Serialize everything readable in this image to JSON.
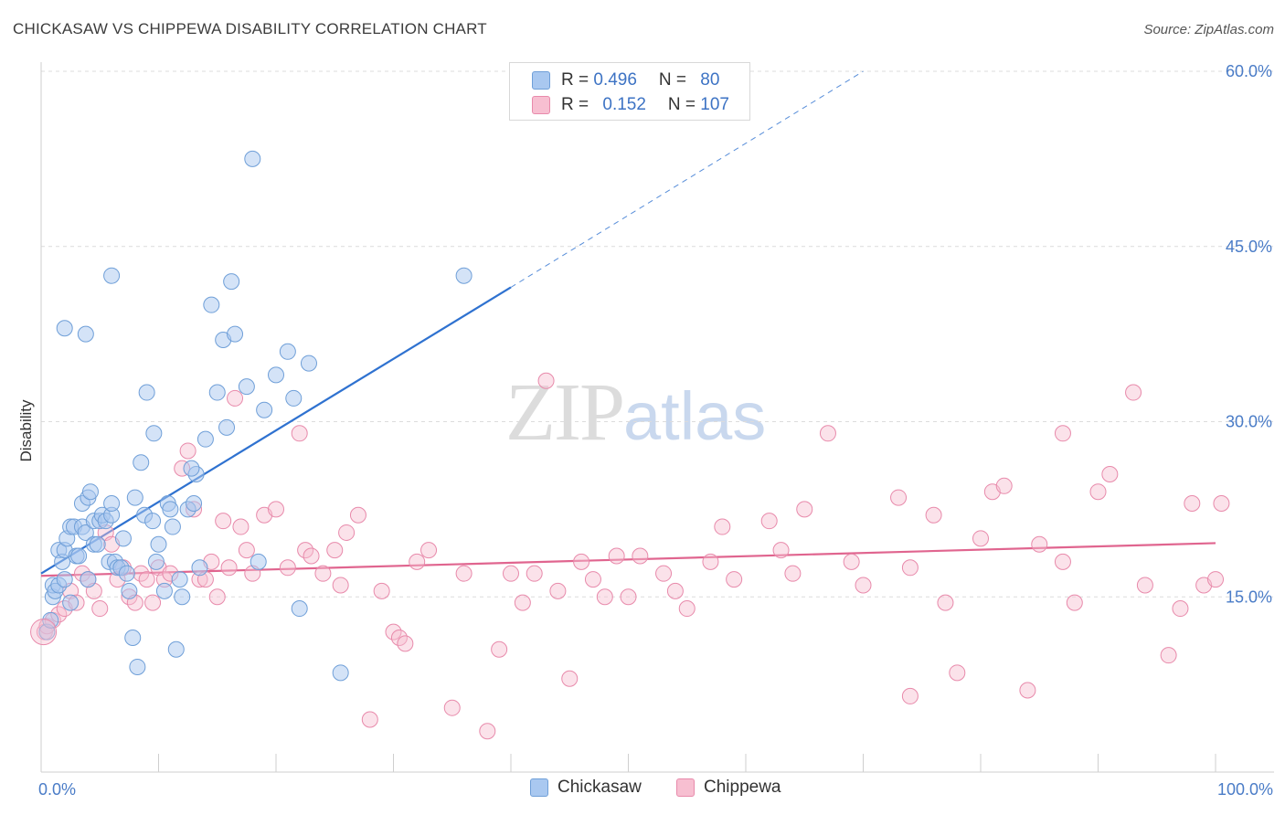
{
  "title": "CHICKASAW VS CHIPPEWA DISABILITY CORRELATION CHART",
  "source": "Source: ZipAtlas.com",
  "watermark": {
    "zip": "ZIP",
    "atlas": "atlas"
  },
  "legend": {
    "rows": [
      {
        "r_label": "R = ",
        "r_value": "0.496",
        "n_label": "N = ",
        "n_value": "80"
      },
      {
        "r_label": "R = ",
        "r_value": "0.152",
        "n_label": "N = ",
        "n_value": "107"
      }
    ]
  },
  "bottom_legend": [
    "Chickasaw",
    "Chippewa"
  ],
  "colors": {
    "chickasaw_fill": "#a9c8f0",
    "chickasaw_stroke": "#6f9fd8",
    "chickasaw_line": "#2f72d0",
    "chippewa_fill": "#f7bfd1",
    "chippewa_stroke": "#e88aab",
    "chippewa_line": "#e0658f",
    "axis_label": "#4a7cc7",
    "grid": "#dcdcdc"
  },
  "chart_data": {
    "type": "scatter",
    "xlabel": "",
    "ylabel": "Disability",
    "xlim": [
      0,
      100
    ],
    "ylim": [
      0,
      60
    ],
    "x_tick_labels": [
      "0.0%",
      "100.0%"
    ],
    "y_ticks": [
      15,
      30,
      45,
      60
    ],
    "y_tick_labels": [
      "15.0%",
      "30.0%",
      "45.0%",
      "60.0%"
    ],
    "grid": true,
    "legend_position": "top-center",
    "series": [
      {
        "name": "Chickasaw",
        "r": 0.496,
        "n": 80,
        "trend": {
          "x0": 0,
          "y0": 17.0,
          "x1": 40,
          "y1": 41.5,
          "dash_x1": 70,
          "dash_y1": 60
        },
        "points": [
          [
            0.5,
            12
          ],
          [
            0.8,
            13
          ],
          [
            1,
            15
          ],
          [
            1,
            16
          ],
          [
            1.2,
            15.5
          ],
          [
            1.5,
            16
          ],
          [
            1.5,
            19
          ],
          [
            1.8,
            18
          ],
          [
            2,
            16.5
          ],
          [
            2,
            19
          ],
          [
            2.2,
            20
          ],
          [
            2.5,
            21
          ],
          [
            2.5,
            14.5
          ],
          [
            2.8,
            21
          ],
          [
            3,
            18.5
          ],
          [
            3.2,
            18.5
          ],
          [
            3.5,
            21
          ],
          [
            3.5,
            23
          ],
          [
            3.8,
            20.5
          ],
          [
            4,
            23.5
          ],
          [
            4,
            16.5
          ],
          [
            4.2,
            24
          ],
          [
            4.5,
            21.5
          ],
          [
            4.5,
            19.5
          ],
          [
            4.8,
            19.5
          ],
          [
            5,
            21.5
          ],
          [
            5.2,
            22
          ],
          [
            5.5,
            21.5
          ],
          [
            5.8,
            18
          ],
          [
            6,
            22
          ],
          [
            6,
            23
          ],
          [
            6.3,
            18
          ],
          [
            6.5,
            17.5
          ],
          [
            6.8,
            17.5
          ],
          [
            7,
            20
          ],
          [
            7.3,
            17
          ],
          [
            7.5,
            15.5
          ],
          [
            7.8,
            11.5
          ],
          [
            8,
            23.5
          ],
          [
            8.2,
            9
          ],
          [
            8.5,
            26.5
          ],
          [
            8.8,
            22
          ],
          [
            9,
            32.5
          ],
          [
            9.5,
            21.5
          ],
          [
            9.8,
            18
          ],
          [
            10,
            19.5
          ],
          [
            10.5,
            15.5
          ],
          [
            10.8,
            23
          ],
          [
            11,
            22.5
          ],
          [
            11.2,
            21
          ],
          [
            11.5,
            10.5
          ],
          [
            11.8,
            16.5
          ],
          [
            12,
            15
          ],
          [
            12.5,
            22.5
          ],
          [
            13,
            23
          ],
          [
            13.2,
            25.5
          ],
          [
            13.5,
            17.5
          ],
          [
            14,
            28.5
          ],
          [
            14.5,
            40
          ],
          [
            15,
            32.5
          ],
          [
            15.5,
            37
          ],
          [
            15.8,
            29.5
          ],
          [
            16.2,
            42
          ],
          [
            16.5,
            37.5
          ],
          [
            18,
            52.5
          ],
          [
            18.5,
            18
          ],
          [
            20,
            34
          ],
          [
            21,
            36
          ],
          [
            21.5,
            32
          ],
          [
            22,
            14
          ],
          [
            22.8,
            35
          ],
          [
            25.5,
            8.5
          ],
          [
            36,
            42.5
          ],
          [
            6,
            42.5
          ],
          [
            3.8,
            37.5
          ],
          [
            2,
            38
          ],
          [
            17.5,
            33
          ],
          [
            19,
            31
          ],
          [
            12.8,
            26
          ],
          [
            9.6,
            29
          ]
        ]
      },
      {
        "name": "Chippewa",
        "r": 0.152,
        "n": 107,
        "trend": {
          "x0": 0,
          "y0": 16.8,
          "x1": 100,
          "y1": 19.6
        },
        "points": [
          [
            0.3,
            12
          ],
          [
            0.5,
            12.5
          ],
          [
            1,
            13
          ],
          [
            1.5,
            13.5
          ],
          [
            2,
            14
          ],
          [
            2.5,
            15.5
          ],
          [
            3,
            14.5
          ],
          [
            3.5,
            17
          ],
          [
            4,
            16.5
          ],
          [
            4.5,
            15.5
          ],
          [
            5,
            14
          ],
          [
            5.5,
            20.5
          ],
          [
            6,
            19.5
          ],
          [
            6.5,
            16.5
          ],
          [
            7,
            17.5
          ],
          [
            7.5,
            15
          ],
          [
            8,
            14.5
          ],
          [
            8.5,
            17
          ],
          [
            9,
            16.5
          ],
          [
            9.5,
            14.5
          ],
          [
            10,
            17.5
          ],
          [
            10.5,
            16.5
          ],
          [
            11,
            17
          ],
          [
            12,
            26
          ],
          [
            12.5,
            27.5
          ],
          [
            13,
            22.5
          ],
          [
            13.5,
            16.5
          ],
          [
            14,
            16.5
          ],
          [
            14.5,
            18
          ],
          [
            15,
            15
          ],
          [
            15.5,
            21.5
          ],
          [
            16,
            17.5
          ],
          [
            16.5,
            32
          ],
          [
            17,
            21
          ],
          [
            17.5,
            19
          ],
          [
            18,
            17
          ],
          [
            19,
            22
          ],
          [
            20,
            22.5
          ],
          [
            21,
            17.5
          ],
          [
            22,
            29
          ],
          [
            22.5,
            19
          ],
          [
            23,
            18.5
          ],
          [
            24,
            17
          ],
          [
            25,
            19
          ],
          [
            25.5,
            16
          ],
          [
            26,
            20.5
          ],
          [
            27,
            22
          ],
          [
            28,
            4.5
          ],
          [
            29,
            15.5
          ],
          [
            30,
            12
          ],
          [
            30.5,
            11.5
          ],
          [
            31,
            11
          ],
          [
            32,
            18
          ],
          [
            33,
            19
          ],
          [
            35,
            5.5
          ],
          [
            36,
            17
          ],
          [
            38,
            3.5
          ],
          [
            39,
            10.5
          ],
          [
            40,
            17
          ],
          [
            41,
            14.5
          ],
          [
            42,
            17
          ],
          [
            43,
            33.5
          ],
          [
            44,
            15.5
          ],
          [
            45,
            8
          ],
          [
            46,
            18
          ],
          [
            47,
            16.5
          ],
          [
            48,
            15
          ],
          [
            49,
            18.5
          ],
          [
            50,
            15
          ],
          [
            51,
            18.5
          ],
          [
            53,
            17
          ],
          [
            55,
            14
          ],
          [
            58,
            21
          ],
          [
            59,
            16.5
          ],
          [
            62,
            21.5
          ],
          [
            63,
            19
          ],
          [
            65,
            22.5
          ],
          [
            67,
            29
          ],
          [
            69,
            18
          ],
          [
            70,
            16
          ],
          [
            73,
            23.5
          ],
          [
            74,
            6.5
          ],
          [
            77,
            14.5
          ],
          [
            78,
            8.5
          ],
          [
            80,
            20
          ],
          [
            81,
            24
          ],
          [
            82,
            24.5
          ],
          [
            84,
            7
          ],
          [
            85,
            19.5
          ],
          [
            87,
            29
          ],
          [
            88,
            14.5
          ],
          [
            90,
            24
          ],
          [
            91,
            25.5
          ],
          [
            93,
            32.5
          ],
          [
            94,
            16
          ],
          [
            96,
            10
          ],
          [
            97,
            14
          ],
          [
            98,
            23
          ],
          [
            99,
            16
          ],
          [
            100,
            16.5
          ],
          [
            100.5,
            23
          ],
          [
            74,
            17.5
          ],
          [
            87,
            18
          ],
          [
            76,
            22
          ],
          [
            64,
            17
          ],
          [
            54,
            15.5
          ],
          [
            57,
            18
          ]
        ]
      }
    ]
  }
}
